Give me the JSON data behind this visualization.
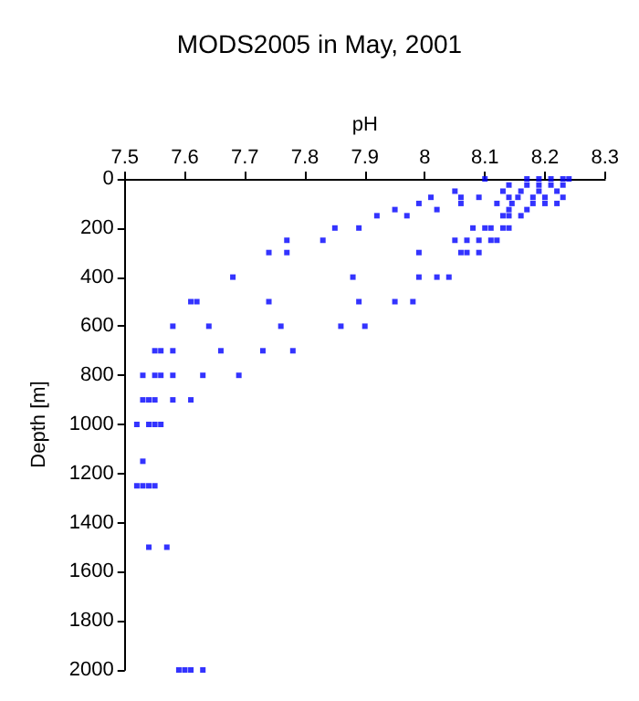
{
  "chart_data": {
    "type": "scatter",
    "title": "MODS2005 in May, 2001",
    "xlabel": "pH",
    "ylabel": "Depth [m]",
    "xlim": [
      7.5,
      8.3
    ],
    "xticks": [
      7.5,
      7.6,
      7.7,
      7.8,
      7.9,
      8,
      8.1,
      8.2,
      8.3
    ],
    "ylim": [
      2000,
      0
    ],
    "yticks": [
      0,
      200,
      400,
      600,
      800,
      1000,
      1200,
      1400,
      1600,
      1800,
      2000
    ],
    "grid": false,
    "marker": "square",
    "series": [
      {
        "color": "#0000ff",
        "x": [
          8.1,
          8.17,
          8.19,
          8.21,
          8.23,
          8.24,
          8.14,
          8.17,
          8.19,
          8.21,
          8.23,
          8.05,
          8.13,
          8.16,
          8.19,
          8.22,
          8.01,
          8.06,
          8.09,
          8.14,
          8.155,
          8.18,
          8.2,
          8.23,
          7.99,
          8.06,
          8.12,
          8.145,
          8.18,
          8.2,
          8.22,
          7.95,
          8.02,
          8.14,
          8.17,
          7.92,
          7.97,
          8.13,
          8.14,
          8.16,
          7.85,
          7.89,
          8.08,
          8.1,
          8.11,
          8.13,
          8.14,
          7.77,
          7.83,
          8.05,
          8.07,
          8.09,
          8.11,
          8.12,
          7.74,
          7.77,
          7.99,
          8.06,
          8.07,
          8.09,
          7.68,
          7.88,
          7.99,
          8.02,
          8.04,
          7.61,
          7.62,
          7.74,
          7.89,
          7.95,
          7.98,
          7.58,
          7.64,
          7.76,
          7.86,
          7.9,
          7.55,
          7.56,
          7.58,
          7.66,
          7.73,
          7.78,
          7.53,
          7.55,
          7.56,
          7.58,
          7.63,
          7.69,
          7.53,
          7.54,
          7.55,
          7.58,
          7.61,
          7.52,
          7.54,
          7.55,
          7.56,
          7.53,
          7.52,
          7.53,
          7.54,
          7.55,
          7.54,
          7.57,
          7.59,
          7.6,
          7.61,
          7.63
        ],
        "values": [
          0,
          0,
          0,
          0,
          0,
          0,
          25,
          25,
          25,
          25,
          25,
          50,
          50,
          50,
          50,
          50,
          75,
          75,
          75,
          75,
          75,
          75,
          75,
          75,
          100,
          100,
          100,
          100,
          100,
          100,
          100,
          125,
          125,
          125,
          125,
          150,
          150,
          150,
          150,
          150,
          200,
          200,
          200,
          200,
          200,
          200,
          200,
          250,
          250,
          250,
          250,
          250,
          250,
          250,
          300,
          300,
          300,
          300,
          300,
          300,
          400,
          400,
          400,
          400,
          400,
          500,
          500,
          500,
          500,
          500,
          500,
          600,
          600,
          600,
          600,
          600,
          700,
          700,
          700,
          700,
          700,
          700,
          800,
          800,
          800,
          800,
          800,
          800,
          900,
          900,
          900,
          900,
          900,
          1000,
          1000,
          1000,
          1000,
          1150,
          1250,
          1250,
          1250,
          1250,
          1500,
          1500,
          2000,
          2000,
          2000,
          2000
        ]
      }
    ]
  }
}
